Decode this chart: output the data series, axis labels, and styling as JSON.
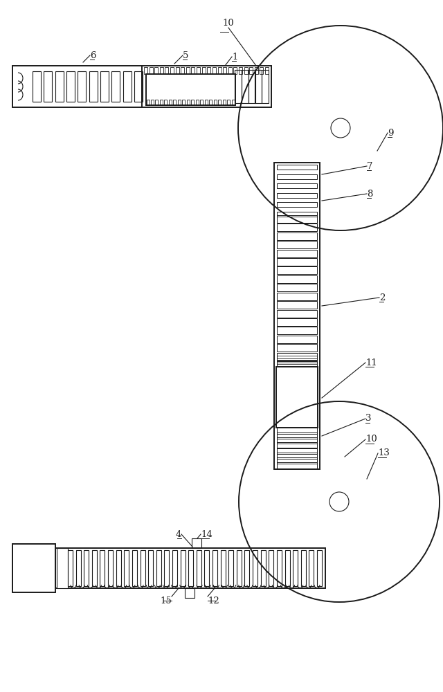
{
  "bg_color": "#ffffff",
  "line_color": "#1a1a1a",
  "lw": 1.4,
  "lw_thin": 0.8,
  "fig_width": 6.4,
  "fig_height": 10.0
}
